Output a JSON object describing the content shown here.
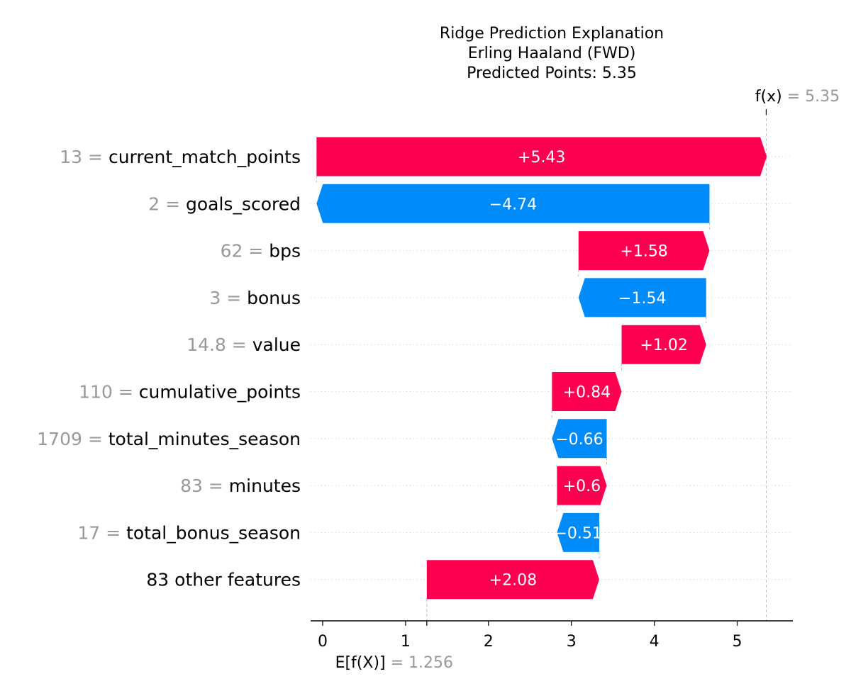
{
  "chart_data": {
    "type": "waterfall",
    "title": [
      "Ridge Prediction Explanation",
      "Erling Haaland (FWD)",
      "Predicted Points: 5.35"
    ],
    "base_value": 1.256,
    "base_label": "E[f(X)]",
    "base_value_text": "= 1.256",
    "output_value": 5.35,
    "output_label": "f(x)",
    "output_value_text": "= 5.35",
    "x_ticks": [
      0,
      1,
      2,
      3,
      4,
      5
    ],
    "xlim": [
      -0.13,
      5.7
    ],
    "features": [
      {
        "value": "13 = ",
        "name": "current_match_points",
        "contribution": 5.43,
        "label": "+5.43"
      },
      {
        "value": "2 = ",
        "name": "goals_scored",
        "contribution": -4.74,
        "label": "−4.74"
      },
      {
        "value": "62 = ",
        "name": "bps",
        "contribution": 1.58,
        "label": "+1.58"
      },
      {
        "value": "3 = ",
        "name": "bonus",
        "contribution": -1.54,
        "label": "−1.54"
      },
      {
        "value": "14.8 = ",
        "name": "value",
        "contribution": 1.02,
        "label": "+1.02"
      },
      {
        "value": "110 = ",
        "name": "cumulative_points",
        "contribution": 0.84,
        "label": "+0.84"
      },
      {
        "value": "1709 = ",
        "name": "total_minutes_season",
        "contribution": -0.66,
        "label": "−0.66"
      },
      {
        "value": "83 = ",
        "name": "minutes",
        "contribution": 0.6,
        "label": "+0.6"
      },
      {
        "value": "17 = ",
        "name": "total_bonus_season",
        "contribution": -0.51,
        "label": "−0.51"
      },
      {
        "value": "",
        "name": "83 other features",
        "contribution": 2.08,
        "label": "+2.08"
      }
    ],
    "colors": {
      "positive": "#ff0051",
      "negative": "#008bfb",
      "muted": "#999999",
      "axis": "#000000"
    }
  }
}
